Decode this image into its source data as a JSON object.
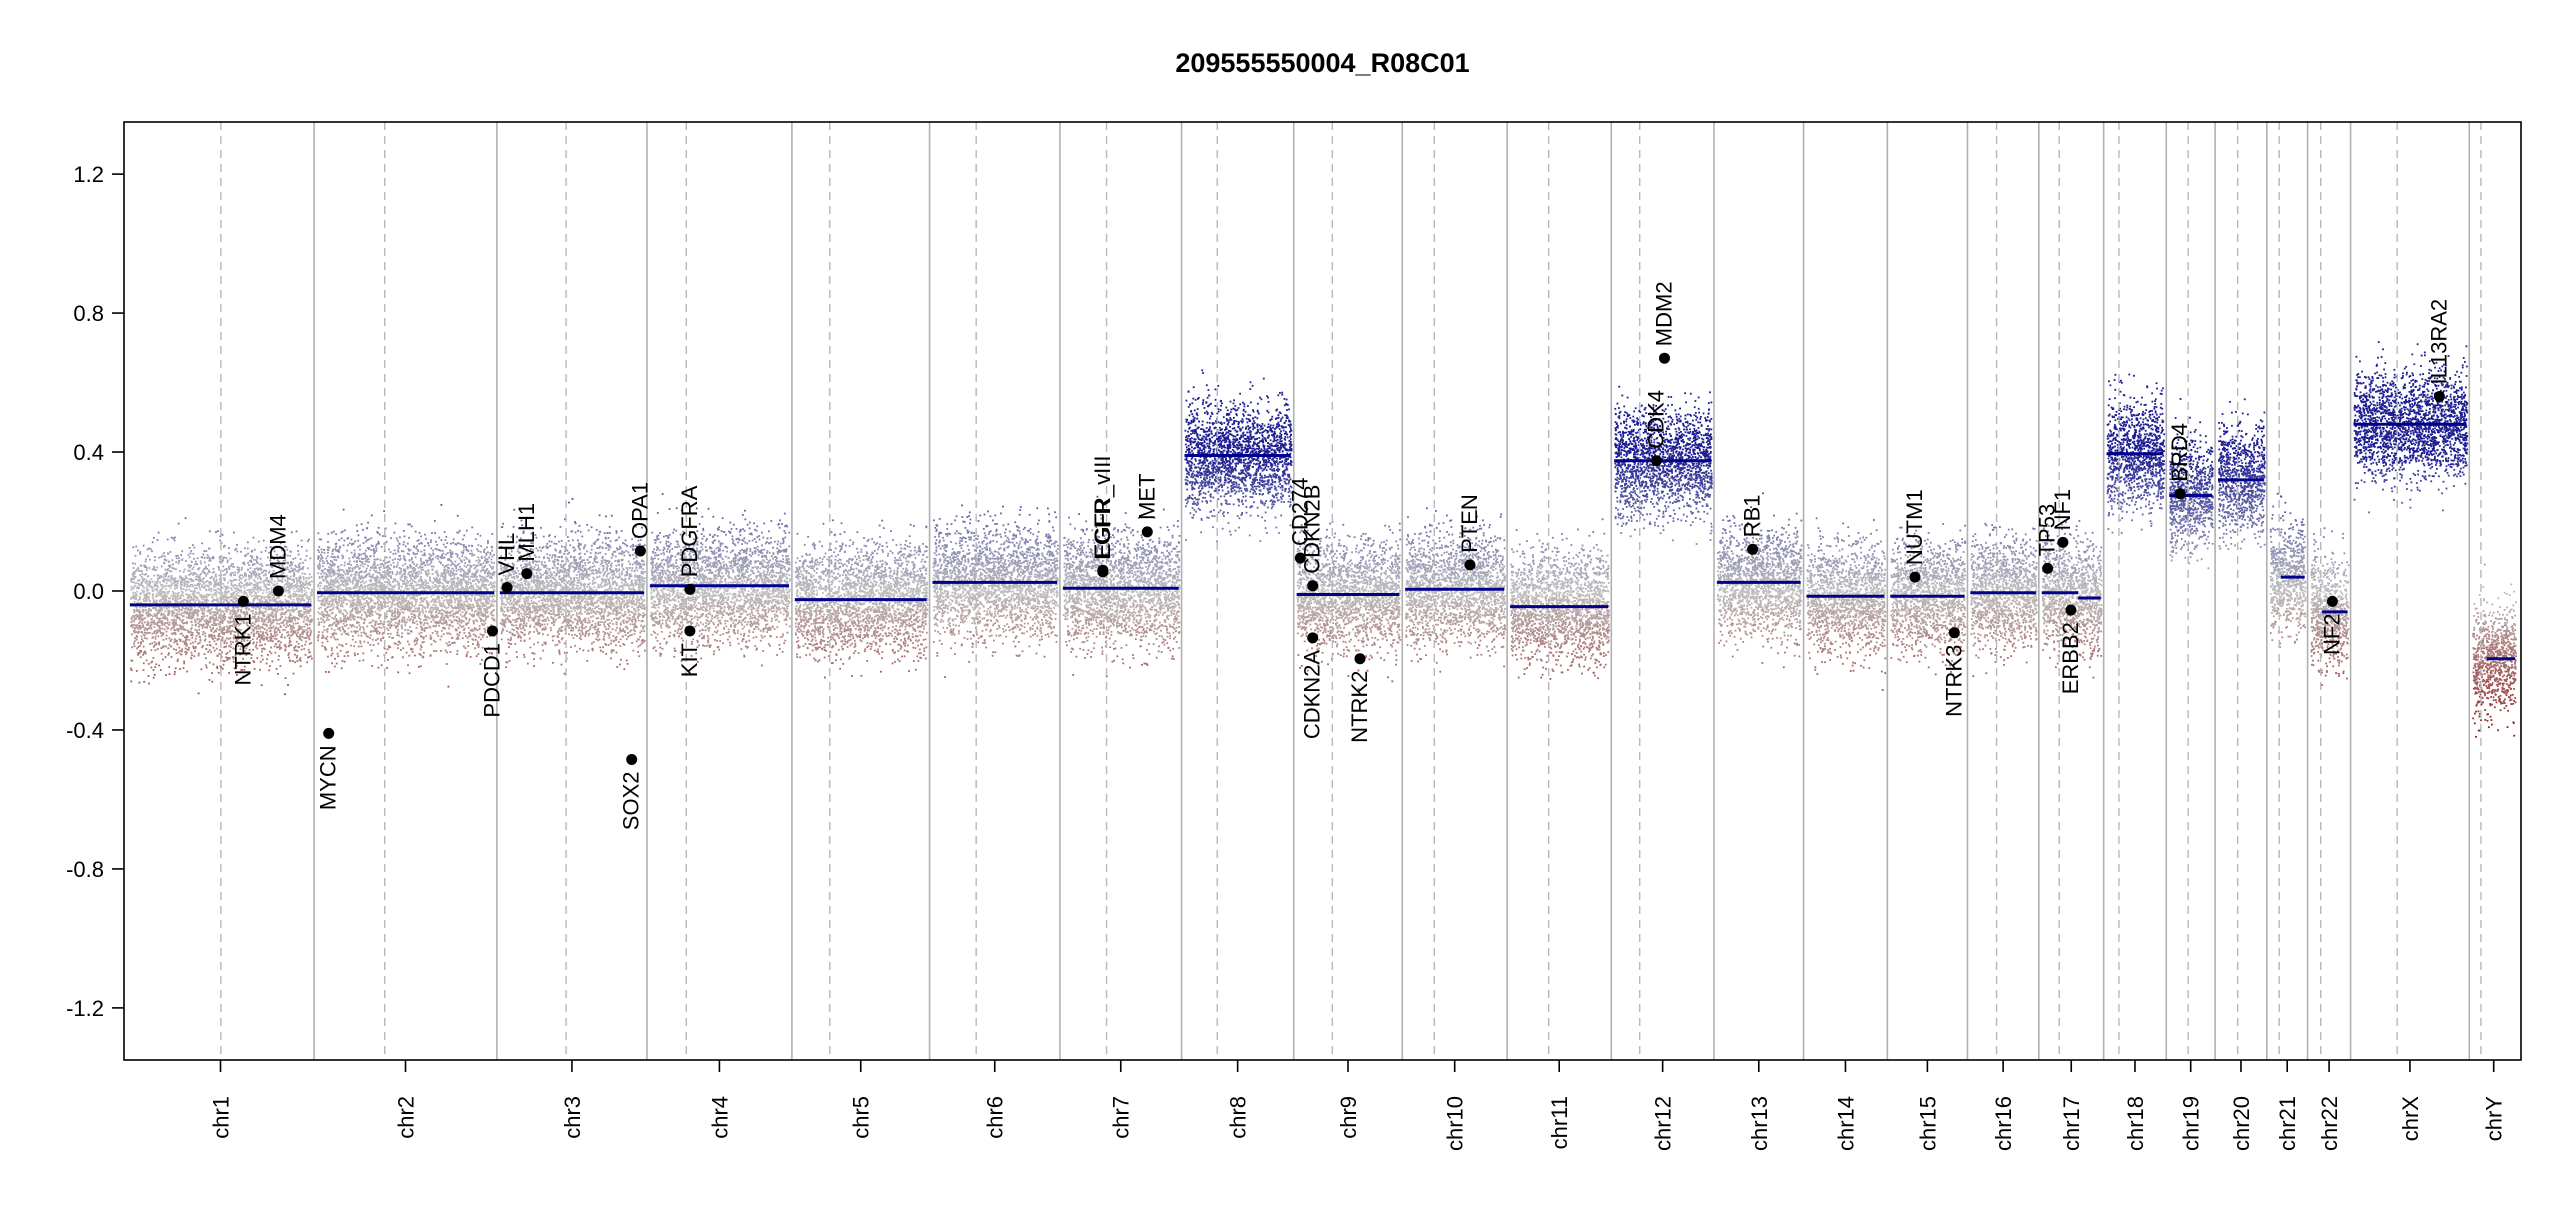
{
  "chart_data": {
    "type": "scatter",
    "title": "209555550004_R08C01",
    "xlabel": "",
    "ylabel": "",
    "ylim": [
      -1.35,
      1.35
    ],
    "yticks": [
      "-1.2",
      "-0.8",
      "-0.4",
      "0.0",
      "0.4",
      "0.8",
      "1.2"
    ],
    "grid": "vertical chromosome boundaries (solid) and centromeres (dashed)",
    "colors": {
      "gain": "#00008B",
      "neutral": "#BEBEBE",
      "loss": "#8B0000",
      "segment": "#00008B",
      "gene_point": "#000000"
    },
    "chromosomes": [
      {
        "name": "chr1",
        "length": 249,
        "centromere": 125,
        "segments": [
          {
            "start": 0,
            "end": 249,
            "value": -0.04
          }
        ]
      },
      {
        "name": "chr2",
        "length": 243,
        "centromere": 93,
        "segments": [
          {
            "start": 0,
            "end": 243,
            "value": -0.005
          }
        ]
      },
      {
        "name": "chr3",
        "length": 198,
        "centromere": 91,
        "segments": [
          {
            "start": 0,
            "end": 198,
            "value": -0.005
          }
        ]
      },
      {
        "name": "chr4",
        "length": 191,
        "centromere": 50,
        "segments": [
          {
            "start": 0,
            "end": 191,
            "value": 0.015
          }
        ]
      },
      {
        "name": "chr5",
        "length": 181,
        "centromere": 48,
        "segments": [
          {
            "start": 0,
            "end": 181,
            "value": -0.025
          }
        ]
      },
      {
        "name": "chr6",
        "length": 171,
        "centromere": 60,
        "segments": [
          {
            "start": 0,
            "end": 171,
            "value": 0.025
          }
        ]
      },
      {
        "name": "chr7",
        "length": 159,
        "centromere": 60,
        "segments": [
          {
            "start": 0,
            "end": 159,
            "value": 0.008
          }
        ]
      },
      {
        "name": "chr8",
        "length": 146,
        "centromere": 45,
        "segments": [
          {
            "start": 0,
            "end": 146,
            "value": 0.39
          }
        ]
      },
      {
        "name": "chr9",
        "length": 141,
        "centromere": 49,
        "segments": [
          {
            "start": 0,
            "end": 141,
            "value": -0.01
          }
        ]
      },
      {
        "name": "chr10",
        "length": 136,
        "centromere": 40,
        "segments": [
          {
            "start": 0,
            "end": 136,
            "value": 0.005
          }
        ]
      },
      {
        "name": "chr11",
        "length": 135,
        "centromere": 53,
        "segments": [
          {
            "start": 0,
            "end": 135,
            "value": -0.045
          }
        ]
      },
      {
        "name": "chr12",
        "length": 133,
        "centromere": 35,
        "segments": [
          {
            "start": 0,
            "end": 133,
            "value": 0.375
          }
        ]
      },
      {
        "name": "chr13",
        "length": 115,
        "centromere": 0,
        "segments": [
          {
            "start": 0,
            "end": 115,
            "value": 0.025
          }
        ]
      },
      {
        "name": "chr14",
        "length": 107,
        "centromere": 0,
        "segments": [
          {
            "start": 0,
            "end": 107,
            "value": -0.015
          }
        ]
      },
      {
        "name": "chr15",
        "length": 102,
        "centromere": 0,
        "segments": [
          {
            "start": 0,
            "end": 102,
            "value": -0.015
          }
        ]
      },
      {
        "name": "chr16",
        "length": 90,
        "centromere": 36,
        "segments": [
          {
            "start": 0,
            "end": 90,
            "value": -0.005
          }
        ]
      },
      {
        "name": "chr17",
        "length": 81,
        "centromere": 24,
        "segments": [
          {
            "start": 0,
            "end": 50,
            "value": -0.005
          },
          {
            "start": 50,
            "end": 81,
            "value": -0.02
          }
        ]
      },
      {
        "name": "chr18",
        "length": 78,
        "centromere": 17,
        "segments": [
          {
            "start": 0,
            "end": 78,
            "value": 0.395
          }
        ]
      },
      {
        "name": "chr19",
        "length": 59,
        "centromere": 26,
        "segments": [
          {
            "start": 0,
            "end": 59,
            "value": 0.275
          }
        ]
      },
      {
        "name": "chr20",
        "length": 63,
        "centromere": 27,
        "segments": [
          {
            "start": 0,
            "end": 63,
            "value": 0.32
          }
        ]
      },
      {
        "name": "chr21",
        "length": 48,
        "centromere": 13,
        "segments": [
          {
            "start": 15,
            "end": 48,
            "value": 0.04
          }
        ]
      },
      {
        "name": "chr22",
        "length": 51,
        "centromere": 14,
        "segments": [
          {
            "start": 16,
            "end": 51,
            "value": -0.06
          }
        ]
      },
      {
        "name": "chrX",
        "length": 155,
        "centromere": 60,
        "segments": [
          {
            "start": 0,
            "end": 155,
            "value": 0.48
          }
        ]
      },
      {
        "name": "chrY",
        "length": 59,
        "centromere": 12,
        "segments": [
          {
            "start": 20,
            "end": 59,
            "value": -0.195
          }
        ]
      }
    ],
    "genes": [
      {
        "name": "NTRK1",
        "chr": "chr1",
        "pos": 156,
        "value": -0.03
      },
      {
        "name": "MDM4",
        "chr": "chr1",
        "pos": 204,
        "value": 0.0
      },
      {
        "name": "MYCN",
        "chr": "chr2",
        "pos": 16,
        "value": -0.41
      },
      {
        "name": "PDCD1",
        "chr": "chr2",
        "pos": 241,
        "value": -0.115
      },
      {
        "name": "VHL",
        "chr": "chr3",
        "pos": 10,
        "value": 0.01
      },
      {
        "name": "MLH1",
        "chr": "chr3",
        "pos": 37,
        "value": 0.05
      },
      {
        "name": "SOX2",
        "chr": "chr3",
        "pos": 181,
        "value": -0.485
      },
      {
        "name": "OPA1",
        "chr": "chr3",
        "pos": 193,
        "value": 0.115
      },
      {
        "name": "PDGFRA",
        "chr": "chr4",
        "pos": 55,
        "value": 0.005
      },
      {
        "name": "KIT",
        "chr": "chr4",
        "pos": 55,
        "value": -0.115
      },
      {
        "name": "EGFR",
        "chr": "chr7",
        "pos": 55,
        "value": 0.055
      },
      {
        "name": "EGFR_vIII",
        "chr": "chr7",
        "pos": 55,
        "value": 0.06
      },
      {
        "name": "MET",
        "chr": "chr7",
        "pos": 116,
        "value": 0.17
      },
      {
        "name": "CD274",
        "chr": "chr9",
        "pos": 5,
        "value": 0.095
      },
      {
        "name": "CDKN2B",
        "chr": "chr9",
        "pos": 22,
        "value": 0.015
      },
      {
        "name": "CDKN2A",
        "chr": "chr9",
        "pos": 22,
        "value": -0.135
      },
      {
        "name": "NTRK2",
        "chr": "chr9",
        "pos": 87,
        "value": -0.195
      },
      {
        "name": "PTEN",
        "chr": "chr10",
        "pos": 89,
        "value": 0.075
      },
      {
        "name": "CDK4",
        "chr": "chr12",
        "pos": 58,
        "value": 0.375
      },
      {
        "name": "MDM2",
        "chr": "chr12",
        "pos": 69,
        "value": 0.67
      },
      {
        "name": "RB1",
        "chr": "chr13",
        "pos": 49,
        "value": 0.12
      },
      {
        "name": "NUTM1",
        "chr": "chr15",
        "pos": 34,
        "value": 0.04
      },
      {
        "name": "NTRK3",
        "chr": "chr15",
        "pos": 88,
        "value": -0.12
      },
      {
        "name": "TP53",
        "chr": "chr17",
        "pos": 8,
        "value": 0.065
      },
      {
        "name": "NF1",
        "chr": "chr17",
        "pos": 29,
        "value": 0.14
      },
      {
        "name": "ERBB2",
        "chr": "chr17",
        "pos": 40,
        "value": -0.055
      },
      {
        "name": "BRD4",
        "chr": "chr19",
        "pos": 15,
        "value": 0.28
      },
      {
        "name": "NF2",
        "chr": "chr22",
        "pos": 30,
        "value": -0.03
      },
      {
        "name": "IL13RA2",
        "chr": "chrX",
        "pos": 118,
        "value": 0.56
      }
    ]
  }
}
